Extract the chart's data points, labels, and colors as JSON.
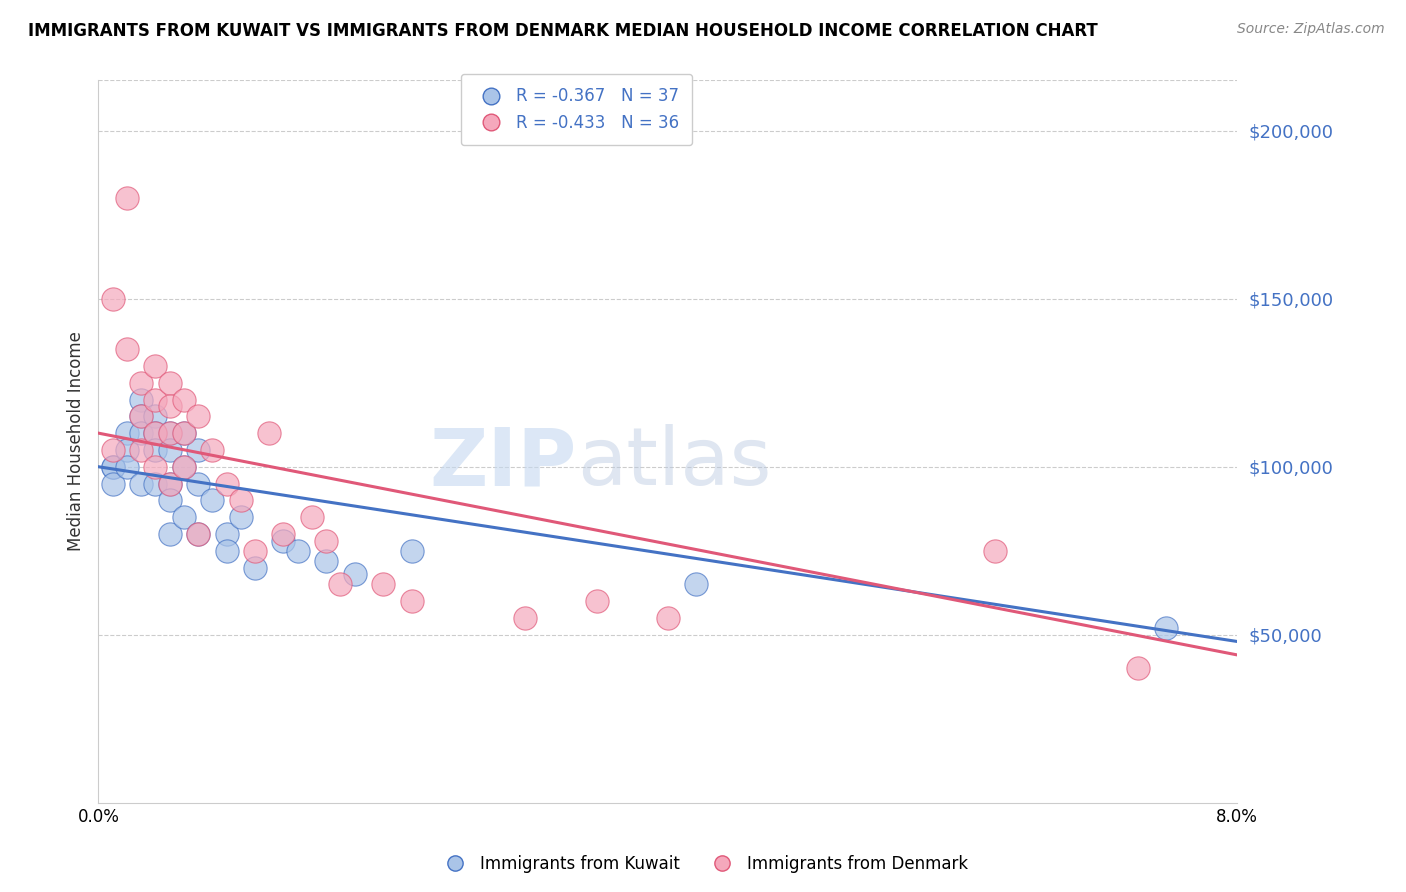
{
  "title": "IMMIGRANTS FROM KUWAIT VS IMMIGRANTS FROM DENMARK MEDIAN HOUSEHOLD INCOME CORRELATION CHART",
  "source": "Source: ZipAtlas.com",
  "ylabel": "Median Household Income",
  "xmin": 0.0,
  "xmax": 0.08,
  "ymin": 0,
  "ymax": 215000,
  "yticks": [
    0,
    50000,
    100000,
    150000,
    200000
  ],
  "ytick_labels": [
    "",
    "$50,000",
    "$100,000",
    "$150,000",
    "$200,000"
  ],
  "color_kuwait": "#aac4e8",
  "color_denmark": "#f5a8bc",
  "line_color_kuwait": "#4472c4",
  "line_color_denmark": "#e05878",
  "legend_r_kuwait": "R = -0.367",
  "legend_n_kuwait": "N = 37",
  "legend_r_denmark": "R = -0.433",
  "legend_n_denmark": "N = 36",
  "watermark_zip": "ZIP",
  "watermark_atlas": "atlas",
  "kuwait_x": [
    0.001,
    0.001,
    0.001,
    0.002,
    0.002,
    0.002,
    0.003,
    0.003,
    0.003,
    0.003,
    0.004,
    0.004,
    0.004,
    0.004,
    0.005,
    0.005,
    0.005,
    0.005,
    0.005,
    0.006,
    0.006,
    0.006,
    0.007,
    0.007,
    0.007,
    0.008,
    0.009,
    0.009,
    0.01,
    0.011,
    0.013,
    0.014,
    0.016,
    0.018,
    0.022,
    0.042,
    0.075
  ],
  "kuwait_y": [
    100000,
    100000,
    95000,
    110000,
    105000,
    100000,
    120000,
    115000,
    110000,
    95000,
    115000,
    110000,
    105000,
    95000,
    110000,
    105000,
    95000,
    90000,
    80000,
    110000,
    100000,
    85000,
    105000,
    95000,
    80000,
    90000,
    80000,
    75000,
    85000,
    70000,
    78000,
    75000,
    72000,
    68000,
    75000,
    65000,
    52000
  ],
  "denmark_x": [
    0.001,
    0.001,
    0.002,
    0.002,
    0.003,
    0.003,
    0.003,
    0.004,
    0.004,
    0.004,
    0.004,
    0.005,
    0.005,
    0.005,
    0.005,
    0.006,
    0.006,
    0.006,
    0.007,
    0.007,
    0.008,
    0.009,
    0.01,
    0.011,
    0.012,
    0.013,
    0.015,
    0.016,
    0.017,
    0.02,
    0.022,
    0.03,
    0.035,
    0.04,
    0.063,
    0.073
  ],
  "denmark_y": [
    150000,
    105000,
    180000,
    135000,
    125000,
    115000,
    105000,
    130000,
    120000,
    110000,
    100000,
    125000,
    118000,
    110000,
    95000,
    120000,
    110000,
    100000,
    115000,
    80000,
    105000,
    95000,
    90000,
    75000,
    110000,
    80000,
    85000,
    78000,
    65000,
    65000,
    60000,
    55000,
    60000,
    55000,
    75000,
    40000
  ],
  "kuwait_line_x0": 0.0,
  "kuwait_line_x1": 0.08,
  "kuwait_line_y0": 100000,
  "kuwait_line_y1": 48000,
  "denmark_line_x0": 0.0,
  "denmark_line_x1": 0.08,
  "denmark_line_y0": 110000,
  "denmark_line_y1": 44000
}
